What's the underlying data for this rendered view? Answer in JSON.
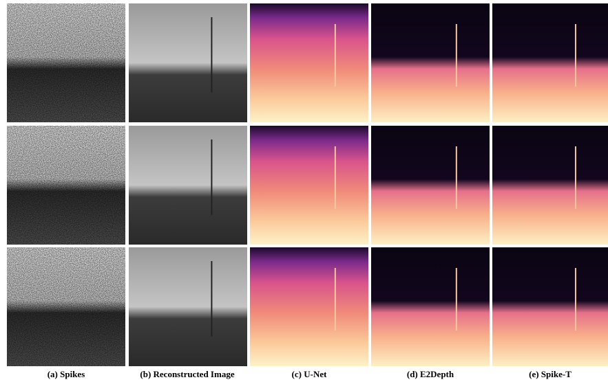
{
  "captions": [
    "(a) Spikes",
    "(b) Reconstructed Image",
    "(c) U-Net",
    "(d) E2Depth",
    "(e) Spike-T"
  ]
}
